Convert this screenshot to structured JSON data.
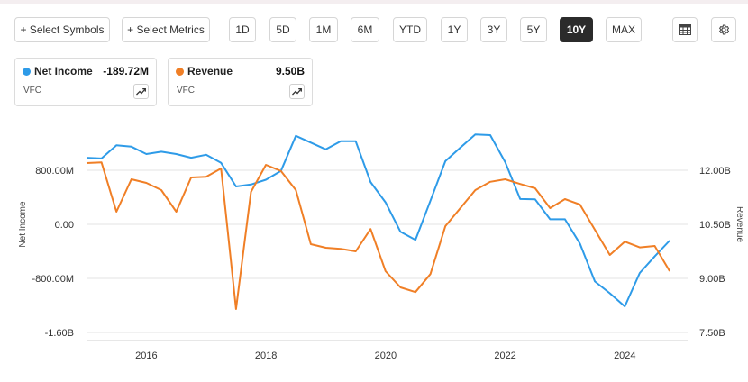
{
  "toolbar": {
    "select_symbols": "+ Select Symbols",
    "select_metrics": "+ Select Metrics",
    "ranges": [
      "1D",
      "5D",
      "1M",
      "6M",
      "YTD",
      "1Y",
      "3Y",
      "5Y",
      "10Y",
      "MAX"
    ],
    "active_range": "10Y",
    "table_icon": "table-icon",
    "settings_icon": "gear-icon"
  },
  "legend_cards": [
    {
      "name": "Net Income",
      "value": "-189.72M",
      "ticker": "VFC",
      "color": "#2e9be8",
      "icon": "trend-line-icon"
    },
    {
      "name": "Revenue",
      "value": "9.50B",
      "ticker": "VFC",
      "color": "#f07f26",
      "icon": "trend-line-icon"
    }
  ],
  "chart_data": {
    "type": "line",
    "title": "",
    "xlabel": "",
    "x_ticks": [
      "2016",
      "2018",
      "2020",
      "2022",
      "2024"
    ],
    "x_range": [
      2015.0,
      2025.05
    ],
    "y_left": {
      "label": "Net Income",
      "ticks": [
        "800.00M",
        "0.00",
        "-800.00M",
        "-1.60B"
      ],
      "tick_values": [
        800,
        0,
        -800,
        -1600
      ],
      "range": [
        -1600,
        1600
      ],
      "unit": "M"
    },
    "y_right": {
      "label": "Revenue",
      "ticks": [
        "12.00B",
        "10.50B",
        "9.00B",
        "7.50B"
      ],
      "tick_values": [
        12.0,
        10.5,
        9.0,
        7.5
      ],
      "range": [
        7.5,
        13.5
      ],
      "unit": "B"
    },
    "grid": true,
    "series": [
      {
        "name": "Net Income",
        "axis": "left",
        "color": "#2e9be8",
        "points": [
          [
            2015.0,
            985
          ],
          [
            2015.25,
            975
          ],
          [
            2015.5,
            1170
          ],
          [
            2015.75,
            1150
          ],
          [
            2016.0,
            1040
          ],
          [
            2016.25,
            1075
          ],
          [
            2016.5,
            1040
          ],
          [
            2016.75,
            985
          ],
          [
            2017.0,
            1030
          ],
          [
            2017.25,
            910
          ],
          [
            2017.5,
            560
          ],
          [
            2017.75,
            590
          ],
          [
            2018.0,
            660
          ],
          [
            2018.25,
            790
          ],
          [
            2018.5,
            1310
          ],
          [
            2018.75,
            1210
          ],
          [
            2019.0,
            1110
          ],
          [
            2019.25,
            1230
          ],
          [
            2019.5,
            1230
          ],
          [
            2019.75,
            625
          ],
          [
            2020.0,
            325
          ],
          [
            2020.25,
            -110
          ],
          [
            2020.5,
            -230
          ],
          [
            2020.75,
            350
          ],
          [
            2021.0,
            935
          ],
          [
            2021.25,
            1135
          ],
          [
            2021.5,
            1330
          ],
          [
            2021.75,
            1320
          ],
          [
            2022.0,
            920
          ],
          [
            2022.25,
            375
          ],
          [
            2022.5,
            370
          ],
          [
            2022.75,
            75
          ],
          [
            2023.0,
            75
          ],
          [
            2023.25,
            -285
          ],
          [
            2023.5,
            -845
          ],
          [
            2023.75,
            -1020
          ],
          [
            2024.0,
            -1215
          ],
          [
            2024.25,
            -720
          ],
          [
            2024.5,
            -475
          ],
          [
            2024.75,
            -240
          ]
        ]
      },
      {
        "name": "Revenue",
        "axis": "right",
        "color": "#f07f26",
        "points": [
          [
            2015.0,
            12.2
          ],
          [
            2015.25,
            12.22
          ],
          [
            2015.5,
            10.85
          ],
          [
            2015.75,
            11.75
          ],
          [
            2016.0,
            11.65
          ],
          [
            2016.25,
            11.45
          ],
          [
            2016.5,
            10.85
          ],
          [
            2016.75,
            11.8
          ],
          [
            2017.0,
            11.82
          ],
          [
            2017.25,
            12.05
          ],
          [
            2017.5,
            8.15
          ],
          [
            2017.75,
            11.4
          ],
          [
            2018.0,
            12.15
          ],
          [
            2018.25,
            11.98
          ],
          [
            2018.5,
            11.45
          ],
          [
            2018.75,
            9.95
          ],
          [
            2019.0,
            9.85
          ],
          [
            2019.25,
            9.82
          ],
          [
            2019.5,
            9.75
          ],
          [
            2019.75,
            10.37
          ],
          [
            2020.0,
            9.2
          ],
          [
            2020.25,
            8.75
          ],
          [
            2020.5,
            8.62
          ],
          [
            2020.75,
            9.12
          ],
          [
            2021.0,
            10.45
          ],
          [
            2021.25,
            10.95
          ],
          [
            2021.5,
            11.45
          ],
          [
            2021.75,
            11.68
          ],
          [
            2022.0,
            11.75
          ],
          [
            2022.25,
            11.62
          ],
          [
            2022.5,
            11.5
          ],
          [
            2022.75,
            10.95
          ],
          [
            2023.0,
            11.2
          ],
          [
            2023.25,
            11.05
          ],
          [
            2023.5,
            10.35
          ],
          [
            2023.75,
            9.65
          ],
          [
            2024.0,
            10.02
          ],
          [
            2024.25,
            9.86
          ],
          [
            2024.5,
            9.9
          ],
          [
            2024.75,
            9.2
          ]
        ]
      }
    ]
  }
}
